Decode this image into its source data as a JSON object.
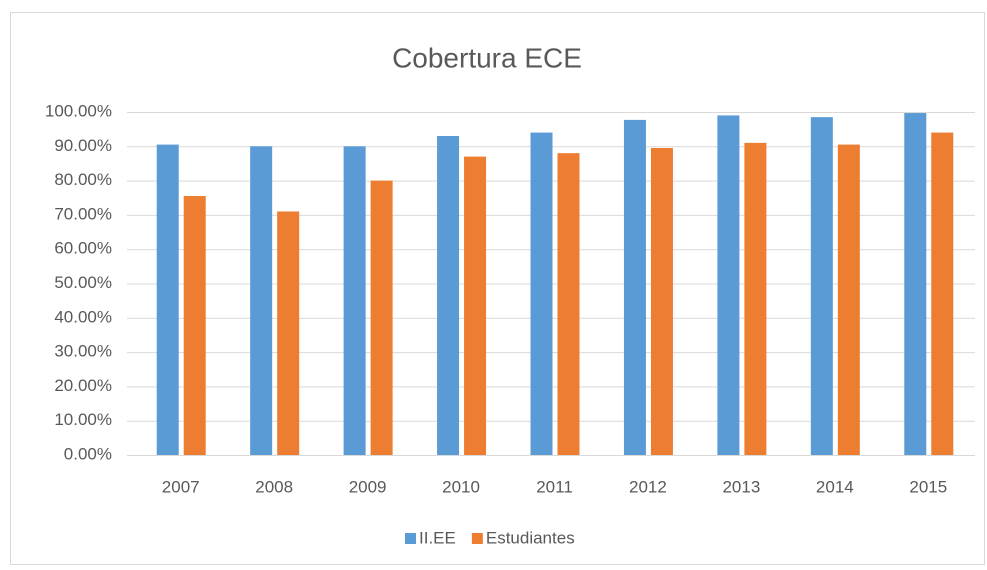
{
  "chart_data": {
    "type": "bar",
    "title": "Cobertura ECE",
    "categories": [
      "2007",
      "2008",
      "2009",
      "2010",
      "2011",
      "2012",
      "2013",
      "2014",
      "2015"
    ],
    "series": [
      {
        "name": "II.EE",
        "color": "#5b9bd5",
        "values": [
          90.5,
          90,
          90,
          93,
          94,
          97.7,
          99,
          98.5,
          99.7
        ]
      },
      {
        "name": "Estudiantes",
        "color": "#ed7d31",
        "values": [
          75.5,
          71,
          80,
          87,
          88,
          89.5,
          91,
          90.5,
          94
        ]
      }
    ],
    "ylim": [
      0,
      100
    ],
    "yticks": [
      {
        "value": 0,
        "label": "0.00%"
      },
      {
        "value": 10,
        "label": "10.00%"
      },
      {
        "value": 20,
        "label": "20.00%"
      },
      {
        "value": 30,
        "label": "30.00%"
      },
      {
        "value": 40,
        "label": "40.00%"
      },
      {
        "value": 50,
        "label": "50.00%"
      },
      {
        "value": 60,
        "label": "60.00%"
      },
      {
        "value": 70,
        "label": "70.00%"
      },
      {
        "value": 80,
        "label": "80.00%"
      },
      {
        "value": 90,
        "label": "90.00%"
      },
      {
        "value": 100,
        "label": "100.00%"
      }
    ],
    "grid": true,
    "legend": "bottom"
  }
}
